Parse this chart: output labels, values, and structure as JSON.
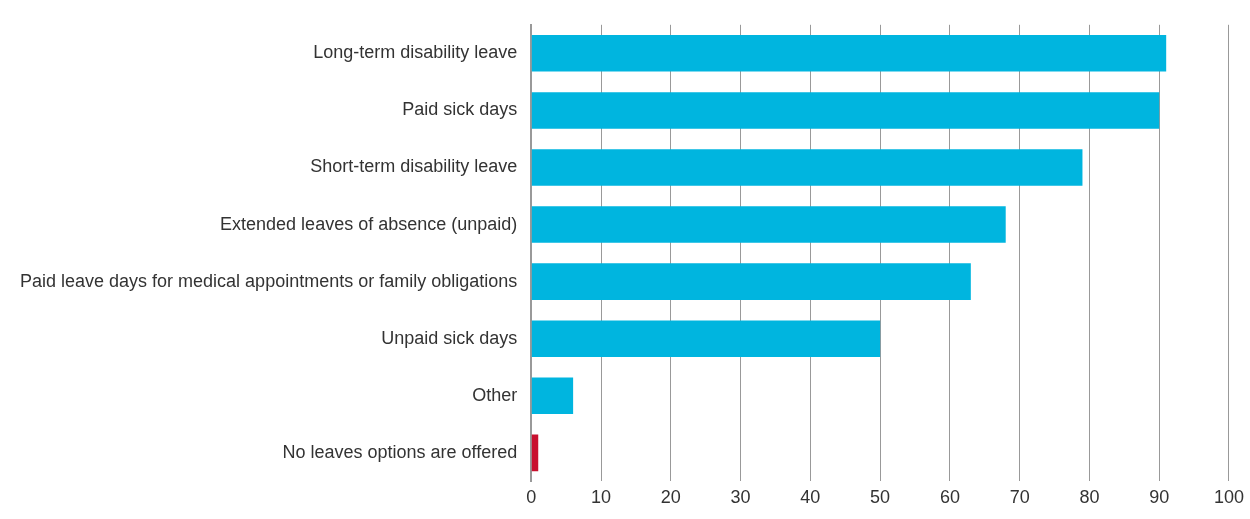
{
  "chart_data": {
    "type": "bar",
    "orientation": "horizontal",
    "categories": [
      "Long-term disability leave",
      "Paid sick days",
      "Short-term disability leave",
      "Extended leaves of absence (unpaid)",
      "Paid leave days for medical appointments or family obligations",
      "Unpaid sick days",
      "Other",
      "No leaves options are offered"
    ],
    "values": [
      91,
      90,
      79,
      68,
      63,
      50,
      6,
      1
    ],
    "colors": [
      "#00b5df",
      "#00b5df",
      "#00b5df",
      "#00b5df",
      "#00b5df",
      "#00b5df",
      "#00b5df",
      "#c8102e"
    ],
    "xlim": [
      0,
      100
    ],
    "xticks": [
      0,
      10,
      20,
      30,
      40,
      50,
      60,
      70,
      80,
      90,
      100
    ],
    "grid": "x",
    "legend": false
  }
}
